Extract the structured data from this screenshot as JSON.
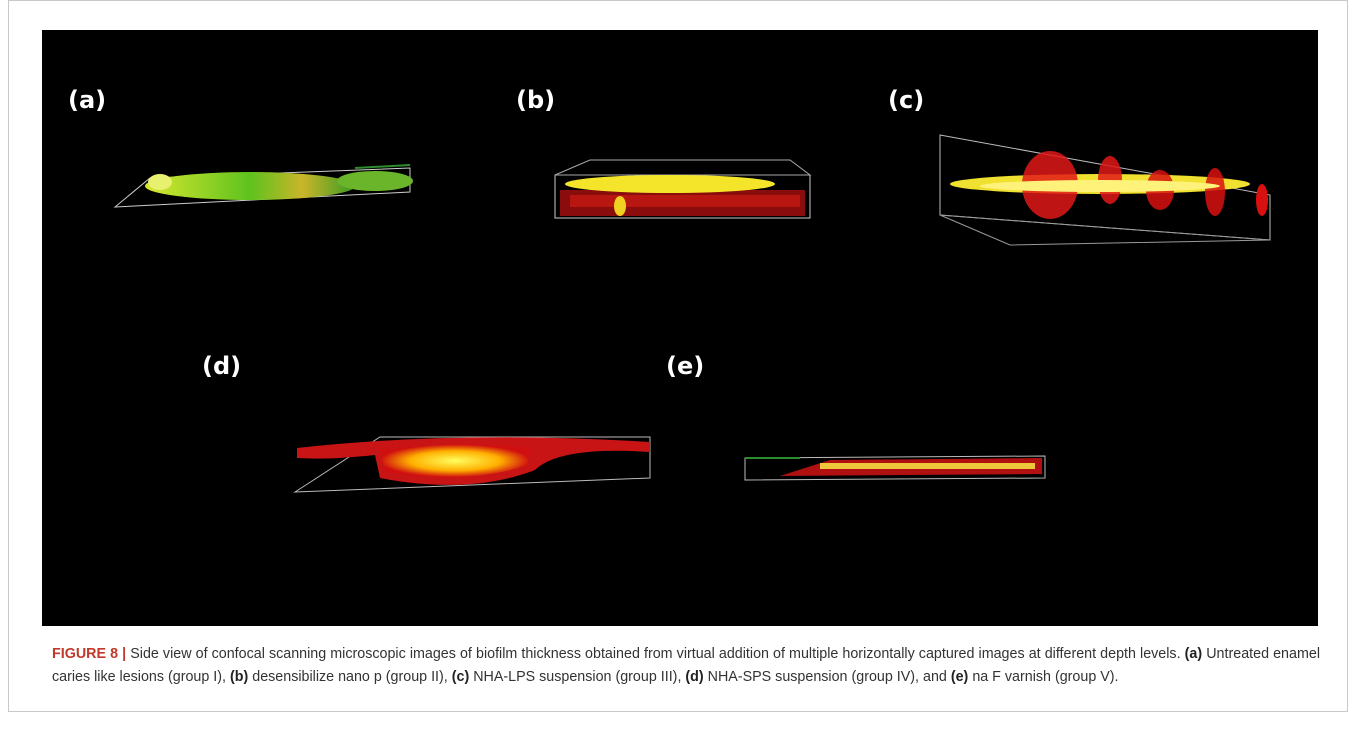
{
  "figure": {
    "panel_labels": [
      "(a)",
      "(b)",
      "(c)",
      "(d)",
      "(e)"
    ],
    "caption": {
      "label": "FIGURE 8 |",
      "intro": "Side view of confocal scanning microscopic images of biofilm thickness obtained from virtual addition of multiple horizontally captured images at different depth levels.",
      "items": [
        {
          "label": "(a)",
          "text": "Untreated enamel caries like lesions (group I),"
        },
        {
          "label": "(b)",
          "text": "desensibilize nano p (group II),"
        },
        {
          "label": "(c)",
          "text": "NHA-LPS suspension (group III),"
        },
        {
          "label": "(d)",
          "text": "NHA-SPS suspension (group IV), and"
        },
        {
          "label": "(e)",
          "text": "na F varnish (group V)."
        }
      ]
    }
  }
}
